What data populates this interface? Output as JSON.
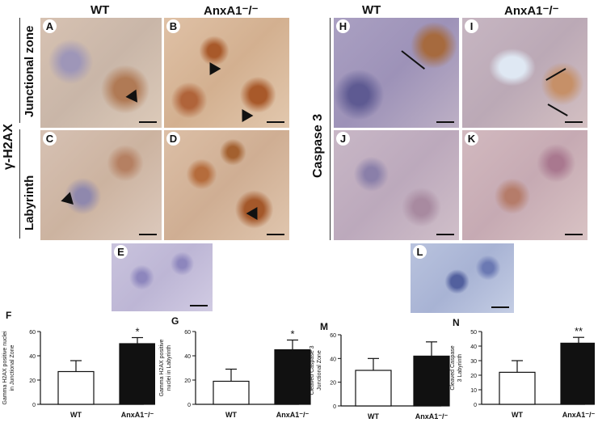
{
  "figure": {
    "col_wt": "WT",
    "col_ko": "AnxA1⁻/⁻",
    "row_left": "γ-H2AX",
    "row_right": "Caspase 3",
    "sub_junctional": "Junctional zone",
    "sub_labyrinth": "Labyrinth",
    "panels": {
      "A": "A",
      "B": "B",
      "C": "C",
      "D": "D",
      "E": "E",
      "H": "H",
      "I": "I",
      "J": "J",
      "K": "K",
      "L": "L"
    },
    "colors": {
      "tissue_pink": "#d9b9aa",
      "tissue_brown": "#b8703a",
      "nuclei_blue": "#6c6aa0",
      "bar_ko": "#111111"
    }
  },
  "chart_data": [
    {
      "letter": "F",
      "type": "bar",
      "categories": [
        "WT",
        "AnxA1⁻/⁻"
      ],
      "values": [
        27,
        50
      ],
      "errors": [
        9,
        5
      ],
      "ylabel": "Gamma H2AX positive nuclei in Junctional Zone",
      "ylim": [
        0,
        60
      ],
      "yticks": [
        "0",
        "20",
        "40",
        "60"
      ],
      "significance": "*"
    },
    {
      "letter": "G",
      "type": "bar",
      "categories": [
        "WT",
        "AnxA1⁻/⁻"
      ],
      "values": [
        19,
        45
      ],
      "errors": [
        10,
        8
      ],
      "ylabel": "Gamma H2AX positive nuclei in Labyrinth",
      "ylim": [
        0,
        60
      ],
      "yticks": [
        "0",
        "20",
        "40",
        "60"
      ],
      "significance": "*"
    },
    {
      "letter": "M",
      "type": "bar",
      "categories": [
        "WT",
        "AnxA1⁻/⁻"
      ],
      "values": [
        30,
        42
      ],
      "errors": [
        10,
        12
      ],
      "ylabel": "Cleaved Caspase 3 Junctional Zone",
      "ylim": [
        0,
        60
      ],
      "yticks": [
        "0",
        "20",
        "40",
        "60"
      ],
      "significance": ""
    },
    {
      "letter": "N",
      "type": "bar",
      "categories": [
        "WT",
        "AnxA1⁻/⁻"
      ],
      "values": [
        22,
        42
      ],
      "errors": [
        8,
        4
      ],
      "ylabel": "Cleaved Caspase 3 Labyrinth",
      "ylim": [
        0,
        50
      ],
      "yticks": [
        "0",
        "10",
        "20",
        "30",
        "40",
        "50"
      ],
      "significance": "**"
    }
  ]
}
